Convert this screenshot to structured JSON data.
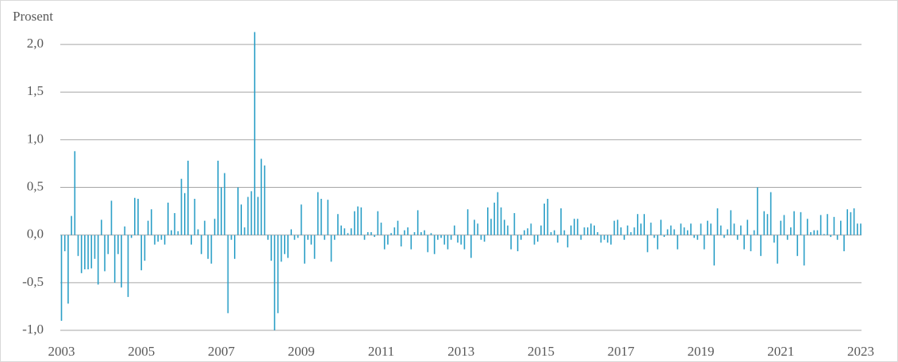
{
  "chart_data": {
    "type": "bar",
    "y_label": "Prosent",
    "color": "#2b9fc7",
    "grid": true,
    "ylim": [
      -1.0,
      2.2
    ],
    "yticks": [
      {
        "value": -1.0,
        "label": "-1,0"
      },
      {
        "value": -0.5,
        "label": "-0,5"
      },
      {
        "value": 0.0,
        "label": "0,0"
      },
      {
        "value": 0.5,
        "label": "0,5"
      },
      {
        "value": 1.0,
        "label": "1,0"
      },
      {
        "value": 1.5,
        "label": "1,5"
      },
      {
        "value": 2.0,
        "label": "2,0"
      }
    ],
    "categories": [
      "2003",
      null,
      null,
      null,
      null,
      null,
      null,
      null,
      null,
      null,
      null,
      null,
      null,
      null,
      null,
      null,
      null,
      null,
      null,
      null,
      null,
      null,
      null,
      null,
      "2005",
      null,
      null,
      null,
      null,
      null,
      null,
      null,
      null,
      null,
      null,
      null,
      null,
      null,
      null,
      null,
      null,
      null,
      null,
      null,
      null,
      null,
      null,
      null,
      "2007",
      null,
      null,
      null,
      null,
      null,
      null,
      null,
      null,
      null,
      null,
      null,
      null,
      null,
      null,
      null,
      null,
      null,
      null,
      null,
      null,
      null,
      null,
      null,
      "2009",
      null,
      null,
      null,
      null,
      null,
      null,
      null,
      null,
      null,
      null,
      null,
      null,
      null,
      null,
      null,
      null,
      null,
      null,
      null,
      null,
      null,
      null,
      null,
      "2011",
      null,
      null,
      null,
      null,
      null,
      null,
      null,
      null,
      null,
      null,
      null,
      null,
      null,
      null,
      null,
      null,
      null,
      null,
      null,
      null,
      null,
      null,
      null,
      "2013",
      null,
      null,
      null,
      null,
      null,
      null,
      null,
      null,
      null,
      null,
      null,
      null,
      null,
      null,
      null,
      null,
      null,
      null,
      null,
      null,
      null,
      null,
      null,
      "2015",
      null,
      null,
      null,
      null,
      null,
      null,
      null,
      null,
      null,
      null,
      null,
      null,
      null,
      null,
      null,
      null,
      null,
      null,
      null,
      null,
      null,
      null,
      null,
      "2017",
      null,
      null,
      null,
      null,
      null,
      null,
      null,
      null,
      null,
      null,
      null,
      null,
      null,
      null,
      null,
      null,
      null,
      null,
      null,
      null,
      null,
      null,
      null,
      "2019",
      null,
      null,
      null,
      null,
      null,
      null,
      null,
      null,
      null,
      null,
      null,
      null,
      null,
      null,
      null,
      null,
      null,
      null,
      null,
      null,
      null,
      null,
      null,
      "2021",
      null,
      null,
      null,
      null,
      null,
      null,
      null,
      null,
      null,
      null,
      null,
      null,
      null,
      null,
      null,
      null,
      null,
      null,
      null,
      null,
      null,
      null,
      null,
      "2023"
    ],
    "values": [
      -0.9,
      -0.17,
      -0.72,
      0.2,
      0.88,
      -0.22,
      -0.4,
      -0.36,
      -0.36,
      -0.35,
      -0.25,
      -0.52,
      0.16,
      -0.38,
      -0.2,
      0.36,
      -0.5,
      -0.2,
      -0.55,
      0.09,
      -0.65,
      -0.03,
      0.39,
      0.38,
      -0.37,
      -0.27,
      0.15,
      0.27,
      -0.1,
      -0.07,
      -0.05,
      -0.1,
      0.34,
      0.05,
      0.23,
      0.04,
      0.59,
      0.44,
      0.78,
      -0.1,
      0.38,
      0.06,
      -0.2,
      0.15,
      -0.25,
      -0.3,
      0.17,
      0.78,
      0.5,
      0.65,
      -0.82,
      -0.05,
      -0.25,
      0.5,
      0.32,
      0.08,
      0.4,
      0.46,
      2.13,
      0.4,
      0.8,
      0.73,
      -0.05,
      -0.27,
      -1.0,
      -0.82,
      -0.28,
      -0.2,
      -0.24,
      0.06,
      -0.05,
      -0.03,
      0.32,
      -0.3,
      -0.05,
      -0.1,
      -0.25,
      0.45,
      0.38,
      -0.05,
      0.37,
      -0.28,
      -0.05,
      0.22,
      0.1,
      0.07,
      0.02,
      0.07,
      0.25,
      0.3,
      0.29,
      -0.05,
      0.03,
      0.03,
      -0.02,
      0.25,
      0.13,
      -0.15,
      -0.1,
      0.02,
      0.08,
      0.15,
      -0.12,
      0.05,
      0.08,
      -0.15,
      0.03,
      0.26,
      0.03,
      0.05,
      -0.18,
      0.02,
      -0.2,
      -0.05,
      -0.03,
      -0.1,
      -0.15,
      -0.05,
      0.1,
      -0.08,
      -0.1,
      -0.15,
      0.27,
      -0.24,
      0.16,
      0.12,
      -0.05,
      -0.07,
      0.29,
      0.17,
      0.34,
      0.45,
      0.29,
      0.16,
      0.1,
      -0.15,
      0.23,
      -0.17,
      -0.05,
      0.05,
      0.07,
      0.12,
      -0.1,
      -0.07,
      0.1,
      0.33,
      0.38,
      0.03,
      0.05,
      -0.08,
      0.28,
      0.05,
      -0.13,
      0.1,
      0.17,
      0.17,
      -0.05,
      0.08,
      0.08,
      0.12,
      0.1,
      0.03,
      -0.08,
      -0.05,
      -0.08,
      -0.1,
      0.15,
      0.16,
      0.08,
      -0.05,
      0.1,
      0.03,
      0.08,
      0.22,
      0.12,
      0.22,
      -0.18,
      0.13,
      -0.03,
      -0.15,
      0.16,
      -0.02,
      0.06,
      0.1,
      0.06,
      -0.15,
      0.12,
      0.08,
      0.05,
      0.12,
      -0.03,
      -0.05,
      0.12,
      -0.15,
      0.15,
      0.12,
      -0.32,
      0.28,
      0.1,
      -0.03,
      0.06,
      0.26,
      0.12,
      -0.05,
      0.1,
      -0.15,
      0.16,
      -0.17,
      0.05,
      0.5,
      -0.22,
      0.25,
      0.22,
      0.45,
      -0.08,
      -0.3,
      0.15,
      0.21,
      -0.05,
      0.08,
      0.25,
      -0.22,
      0.24,
      -0.32,
      0.17,
      0.03,
      0.05,
      0.05,
      0.21,
      0.01,
      0.22,
      -0.02,
      0.19,
      -0.05,
      0.15,
      -0.17,
      0.27,
      0.24,
      0.28,
      0.12,
      0.12
    ]
  }
}
